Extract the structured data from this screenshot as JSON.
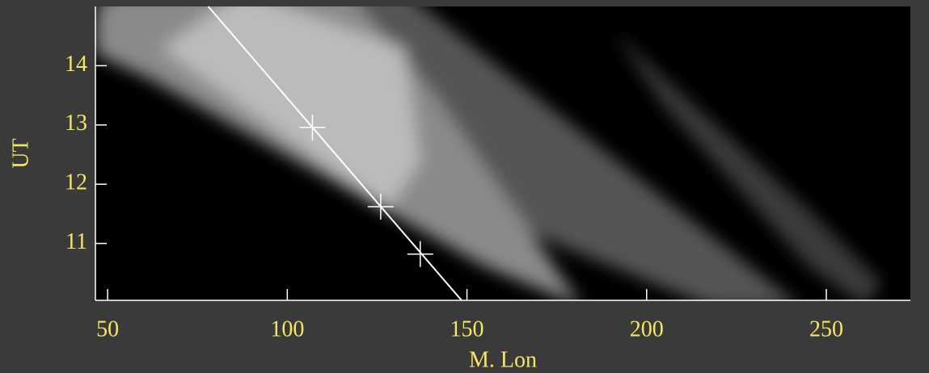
{
  "chart_data": {
    "type": "line",
    "xlabel": "M. Lon",
    "ylabel": "UT",
    "xlim": [
      46.6,
      273.4
    ],
    "ylim": [
      10.04,
      15
    ],
    "xticks": [
      50,
      100,
      150,
      200,
      250
    ],
    "yticks": [
      11,
      12,
      13,
      14
    ],
    "line": {
      "x": [
        78,
        148.5
      ],
      "y": [
        15,
        10.04
      ],
      "color": "#ffffff"
    },
    "points": {
      "x": [
        107,
        126,
        137
      ],
      "y": [
        12.96,
        11.62,
        10.82
      ],
      "color": "#ffffff"
    },
    "label_color": "#f5e663"
  }
}
